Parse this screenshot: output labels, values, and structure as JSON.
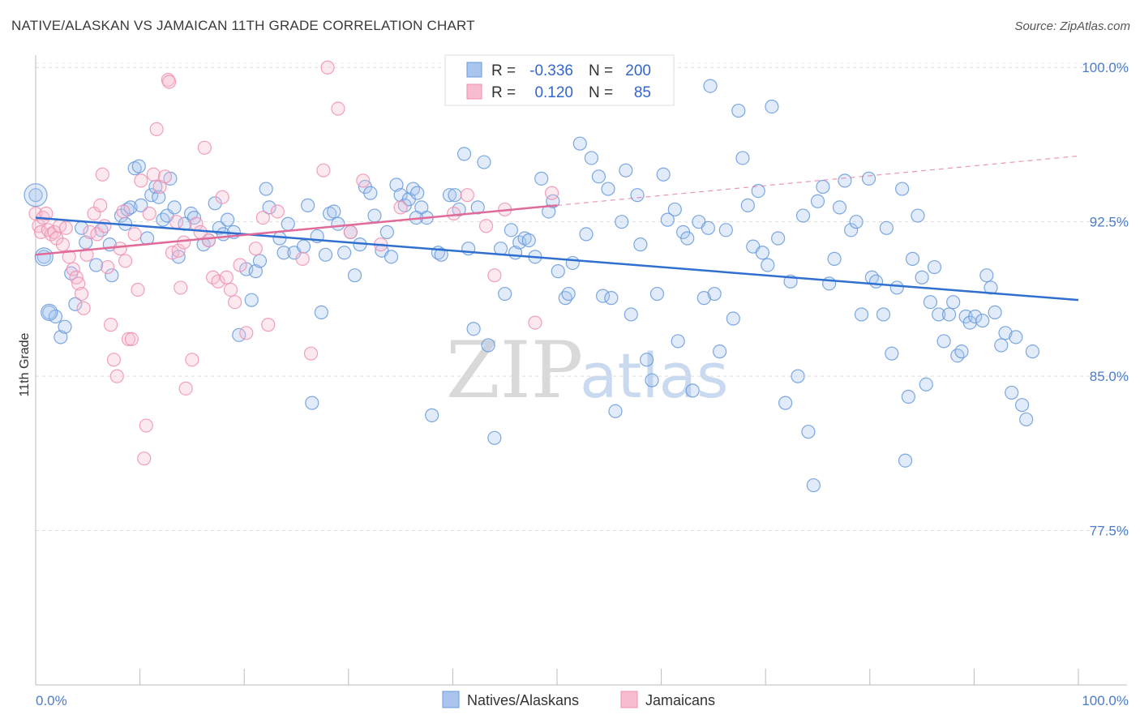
{
  "title": "NATIVE/ALASKAN VS JAMAICAN 11TH GRADE CORRELATION CHART",
  "source": "Source: ZipAtlas.com",
  "watermark": {
    "zip": "ZIP",
    "atlas": "atlas"
  },
  "chart_data": {
    "type": "scatter",
    "title": "NATIVE/ALASKAN VS JAMAICAN 11TH GRADE CORRELATION CHART",
    "ylabel": "11th Grade",
    "xlabel": "",
    "xlim": [
      0,
      100
    ],
    "ylim": [
      70,
      100.6
    ],
    "x_tick_labels": [
      "0.0%",
      "100.0%"
    ],
    "y_ticks": [
      77.5,
      85.0,
      92.5,
      100.0
    ],
    "y_tick_labels": [
      "77.5%",
      "85.0%",
      "92.5%",
      "100.0%"
    ],
    "grid": true,
    "legend_position": "top-center",
    "colors": {
      "natives": "#6699dd",
      "jamaicans": "#f08fb0",
      "natives_line": "#2f6fd0",
      "jamaicans_line": "#e06a98",
      "axis_text": "#4a7cc9"
    },
    "stats": [
      {
        "series": "Natives/Alaskans",
        "r_label": "R =",
        "r": "-0.336",
        "n_label": "N =",
        "n": "200"
      },
      {
        "series": "Jamaicans",
        "r_label": "R =",
        "r": "0.120",
        "n_label": "N =",
        "n": "85"
      }
    ],
    "trendlines": [
      {
        "series": "Natives/Alaskans",
        "x0": 0,
        "y0": 92.7,
        "x1": 100,
        "y1": 88.7,
        "dashed_from": null
      },
      {
        "series": "Jamaicans",
        "x0": 0,
        "y0": 90.9,
        "x1": 100,
        "y1": 95.7,
        "solid_until": 50
      }
    ],
    "series": [
      {
        "name": "Natives/Alaskans",
        "points": [
          [
            0.0,
            93.8
          ],
          [
            0.8,
            90.8
          ],
          [
            1.3,
            88.1
          ],
          [
            1.9,
            87.9
          ],
          [
            2.4,
            86.9
          ],
          [
            2.8,
            87.4
          ],
          [
            3.4,
            90.0
          ],
          [
            3.8,
            88.5
          ],
          [
            4.4,
            92.2
          ],
          [
            4.8,
            91.5
          ],
          [
            5.8,
            90.4
          ],
          [
            6.3,
            92.1
          ],
          [
            7.1,
            91.4
          ],
          [
            7.3,
            89.9
          ],
          [
            8.2,
            92.8
          ],
          [
            8.6,
            92.4
          ],
          [
            8.8,
            93.1
          ],
          [
            9.1,
            93.2
          ],
          [
            9.5,
            95.1
          ],
          [
            9.9,
            95.2
          ],
          [
            10.1,
            93.3
          ],
          [
            10.7,
            91.7
          ],
          [
            11.1,
            93.8
          ],
          [
            11.5,
            94.2
          ],
          [
            11.8,
            93.7
          ],
          [
            12.2,
            92.6
          ],
          [
            12.6,
            92.8
          ],
          [
            12.9,
            94.6
          ],
          [
            13.3,
            93.2
          ],
          [
            13.7,
            90.8
          ],
          [
            14.3,
            92.4
          ],
          [
            14.9,
            92.9
          ],
          [
            15.2,
            92.7
          ],
          [
            16.1,
            91.4
          ],
          [
            16.6,
            91.6
          ],
          [
            17.2,
            93.4
          ],
          [
            17.6,
            92.2
          ],
          [
            18.0,
            91.9
          ],
          [
            18.4,
            92.6
          ],
          [
            19.0,
            92.0
          ],
          [
            19.5,
            87.0
          ],
          [
            20.2,
            90.2
          ],
          [
            20.7,
            88.7
          ],
          [
            21.1,
            90.1
          ],
          [
            21.5,
            90.6
          ],
          [
            22.1,
            94.1
          ],
          [
            22.4,
            93.2
          ],
          [
            23.4,
            91.7
          ],
          [
            23.8,
            91.0
          ],
          [
            24.2,
            92.4
          ],
          [
            24.8,
            91.0
          ],
          [
            25.7,
            91.3
          ],
          [
            26.1,
            93.3
          ],
          [
            26.5,
            83.7
          ],
          [
            27.0,
            91.8
          ],
          [
            27.4,
            88.1
          ],
          [
            27.8,
            90.9
          ],
          [
            28.2,
            92.9
          ],
          [
            28.6,
            93.0
          ],
          [
            29.0,
            92.4
          ],
          [
            29.6,
            91.0
          ],
          [
            30.2,
            92.0
          ],
          [
            30.6,
            89.9
          ],
          [
            31.1,
            91.4
          ],
          [
            31.6,
            94.2
          ],
          [
            32.1,
            93.9
          ],
          [
            32.5,
            92.8
          ],
          [
            33.2,
            91.1
          ],
          [
            33.7,
            92.0
          ],
          [
            34.1,
            90.8
          ],
          [
            34.6,
            94.3
          ],
          [
            35.0,
            93.8
          ],
          [
            35.4,
            93.3
          ],
          [
            35.8,
            93.6
          ],
          [
            36.2,
            94.1
          ],
          [
            36.6,
            93.9
          ],
          [
            37.0,
            93.2
          ],
          [
            37.5,
            92.7
          ],
          [
            38.0,
            83.1
          ],
          [
            38.6,
            91.0
          ],
          [
            38.9,
            90.9
          ],
          [
            39.7,
            93.8
          ],
          [
            40.2,
            93.8
          ],
          [
            40.6,
            93.1
          ],
          [
            41.1,
            95.8
          ],
          [
            41.5,
            91.2
          ],
          [
            42.0,
            87.3
          ],
          [
            42.4,
            93.2
          ],
          [
            43.0,
            95.4
          ],
          [
            43.4,
            86.5
          ],
          [
            44.0,
            82.0
          ],
          [
            44.6,
            91.2
          ],
          [
            45.0,
            89.0
          ],
          [
            45.6,
            92.1
          ],
          [
            46.0,
            91.0
          ],
          [
            46.4,
            91.5
          ],
          [
            46.9,
            91.7
          ],
          [
            47.3,
            91.6
          ],
          [
            47.9,
            90.8
          ],
          [
            48.5,
            94.6
          ],
          [
            49.2,
            93.0
          ],
          [
            49.6,
            93.5
          ],
          [
            50.1,
            90.1
          ],
          [
            50.8,
            88.8
          ],
          [
            51.1,
            89.0
          ],
          [
            51.5,
            90.5
          ],
          [
            52.2,
            96.3
          ],
          [
            52.8,
            91.9
          ],
          [
            53.3,
            95.6
          ],
          [
            54.0,
            94.7
          ],
          [
            54.4,
            88.9
          ],
          [
            54.9,
            94.1
          ],
          [
            55.2,
            88.8
          ],
          [
            55.6,
            83.3
          ],
          [
            56.2,
            92.5
          ],
          [
            56.6,
            95.0
          ],
          [
            57.1,
            88.0
          ],
          [
            57.7,
            93.8
          ],
          [
            58.0,
            91.4
          ],
          [
            58.6,
            85.8
          ],
          [
            59.1,
            84.8
          ],
          [
            59.6,
            89.0
          ],
          [
            60.2,
            94.8
          ],
          [
            60.6,
            92.6
          ],
          [
            61.3,
            93.1
          ],
          [
            61.6,
            86.7
          ],
          [
            62.1,
            92.0
          ],
          [
            62.5,
            91.7
          ],
          [
            63.0,
            84.3
          ],
          [
            63.6,
            92.5
          ],
          [
            64.1,
            88.8
          ],
          [
            64.5,
            92.2
          ],
          [
            65.1,
            89.0
          ],
          [
            65.6,
            86.2
          ],
          [
            66.2,
            92.1
          ],
          [
            66.9,
            87.8
          ],
          [
            67.4,
            97.9
          ],
          [
            67.8,
            95.6
          ],
          [
            68.3,
            93.3
          ],
          [
            68.8,
            91.3
          ],
          [
            69.3,
            94.0
          ],
          [
            69.7,
            91.0
          ],
          [
            70.2,
            90.4
          ],
          [
            70.6,
            98.1
          ],
          [
            71.2,
            91.7
          ],
          [
            71.9,
            83.7
          ],
          [
            72.4,
            89.6
          ],
          [
            73.1,
            85.0
          ],
          [
            73.6,
            92.8
          ],
          [
            74.1,
            82.3
          ],
          [
            74.6,
            79.7
          ],
          [
            75.0,
            93.5
          ],
          [
            75.5,
            94.2
          ],
          [
            76.1,
            89.5
          ],
          [
            76.6,
            90.7
          ],
          [
            77.1,
            93.2
          ],
          [
            77.6,
            94.5
          ],
          [
            78.2,
            92.1
          ],
          [
            78.7,
            92.5
          ],
          [
            79.2,
            88.0
          ],
          [
            79.9,
            94.6
          ],
          [
            80.2,
            89.8
          ],
          [
            80.6,
            89.6
          ],
          [
            81.3,
            88.0
          ],
          [
            81.6,
            92.2
          ],
          [
            82.1,
            86.1
          ],
          [
            82.6,
            89.3
          ],
          [
            83.1,
            94.1
          ],
          [
            83.4,
            80.9
          ],
          [
            83.7,
            84.0
          ],
          [
            84.1,
            90.7
          ],
          [
            84.6,
            92.8
          ],
          [
            85.0,
            89.8
          ],
          [
            85.4,
            84.6
          ],
          [
            85.8,
            88.6
          ],
          [
            86.2,
            90.3
          ],
          [
            86.6,
            88.0
          ],
          [
            87.1,
            86.7
          ],
          [
            87.6,
            88.0
          ],
          [
            88.0,
            88.6
          ],
          [
            88.4,
            86.0
          ],
          [
            88.8,
            86.2
          ],
          [
            89.2,
            87.9
          ],
          [
            89.6,
            87.6
          ],
          [
            90.1,
            87.9
          ],
          [
            90.8,
            87.7
          ],
          [
            91.2,
            89.9
          ],
          [
            91.6,
            89.3
          ],
          [
            92.0,
            88.1
          ],
          [
            92.6,
            86.5
          ],
          [
            93.0,
            87.1
          ],
          [
            93.6,
            84.2
          ],
          [
            94.0,
            86.9
          ],
          [
            94.6,
            83.6
          ],
          [
            95.0,
            82.9
          ],
          [
            95.6,
            86.2
          ],
          [
            64.7,
            99.1
          ],
          [
            36.5,
            92.7
          ]
        ]
      },
      {
        "name": "Jamaicans",
        "points": [
          [
            0.0,
            92.9
          ],
          [
            0.3,
            92.3
          ],
          [
            0.5,
            92.0
          ],
          [
            0.7,
            92.7
          ],
          [
            1.0,
            92.9
          ],
          [
            1.2,
            92.1
          ],
          [
            1.5,
            91.9
          ],
          [
            1.8,
            92.0
          ],
          [
            2.0,
            91.7
          ],
          [
            2.3,
            92.3
          ],
          [
            2.6,
            91.4
          ],
          [
            2.9,
            92.2
          ],
          [
            3.2,
            90.8
          ],
          [
            3.6,
            90.2
          ],
          [
            3.9,
            89.8
          ],
          [
            4.1,
            89.5
          ],
          [
            4.4,
            89.0
          ],
          [
            4.6,
            88.3
          ],
          [
            4.9,
            90.9
          ],
          [
            5.2,
            92.0
          ],
          [
            5.6,
            92.9
          ],
          [
            5.9,
            91.9
          ],
          [
            6.2,
            93.3
          ],
          [
            6.4,
            94.8
          ],
          [
            6.6,
            92.3
          ],
          [
            6.9,
            90.3
          ],
          [
            7.2,
            87.5
          ],
          [
            7.5,
            85.8
          ],
          [
            7.8,
            85.0
          ],
          [
            8.1,
            91.2
          ],
          [
            8.4,
            93.0
          ],
          [
            8.6,
            90.6
          ],
          [
            8.9,
            86.8
          ],
          [
            9.2,
            86.8
          ],
          [
            9.5,
            91.9
          ],
          [
            9.8,
            89.2
          ],
          [
            10.1,
            94.5
          ],
          [
            10.4,
            81.0
          ],
          [
            10.6,
            82.6
          ],
          [
            10.9,
            92.9
          ],
          [
            11.3,
            94.8
          ],
          [
            11.6,
            97.0
          ],
          [
            11.9,
            94.2
          ],
          [
            12.4,
            94.7
          ],
          [
            12.7,
            99.4
          ],
          [
            12.8,
            99.3
          ],
          [
            13.1,
            91.0
          ],
          [
            13.5,
            92.5
          ],
          [
            13.7,
            91.1
          ],
          [
            13.9,
            89.3
          ],
          [
            14.2,
            91.5
          ],
          [
            14.4,
            84.4
          ],
          [
            15.0,
            85.8
          ],
          [
            15.4,
            92.4
          ],
          [
            15.8,
            92.0
          ],
          [
            16.2,
            96.1
          ],
          [
            16.6,
            91.6
          ],
          [
            17.0,
            89.8
          ],
          [
            17.5,
            89.6
          ],
          [
            17.9,
            93.7
          ],
          [
            18.3,
            89.8
          ],
          [
            18.7,
            89.2
          ],
          [
            19.1,
            88.6
          ],
          [
            19.6,
            90.4
          ],
          [
            20.2,
            87.1
          ],
          [
            21.1,
            91.2
          ],
          [
            21.8,
            92.7
          ],
          [
            22.3,
            87.5
          ],
          [
            23.2,
            93.0
          ],
          [
            25.6,
            90.7
          ],
          [
            26.4,
            86.1
          ],
          [
            27.6,
            95.0
          ],
          [
            28.0,
            100.0
          ],
          [
            29.0,
            98.0
          ],
          [
            30.2,
            92.0
          ],
          [
            31.4,
            94.5
          ],
          [
            33.1,
            91.4
          ],
          [
            35.0,
            93.2
          ],
          [
            40.1,
            92.9
          ],
          [
            41.4,
            93.8
          ],
          [
            43.2,
            92.3
          ],
          [
            44.0,
            89.9
          ],
          [
            45.0,
            93.1
          ],
          [
            47.9,
            87.6
          ],
          [
            49.5,
            93.9
          ]
        ]
      }
    ]
  },
  "legend": {
    "natives_label": "Natives/Alaskans",
    "jamaicans_label": "Jamaicans"
  }
}
